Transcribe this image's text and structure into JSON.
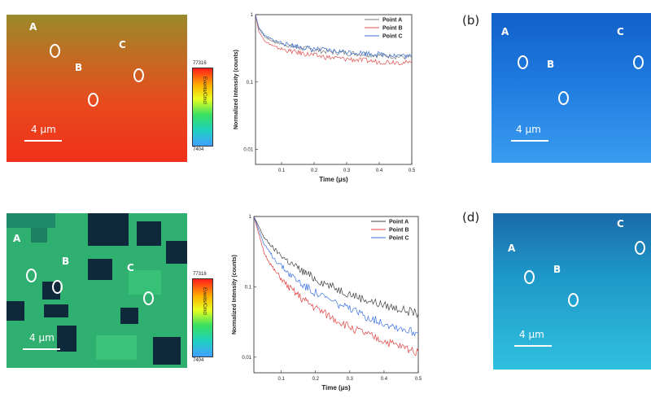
{
  "maps": {
    "a": {
      "label_a": "A",
      "label_b": "B",
      "label_c": "C",
      "scale": "4 μm",
      "colorbar": {
        "max": "77316",
        "min": "7404",
        "title": "Events/Cmcl"
      }
    },
    "b": {
      "panel": "(b)",
      "label_a": "A",
      "label_b": "B",
      "label_c": "C",
      "scale": "4 μm"
    },
    "c": {
      "label_a": "A",
      "label_b": "B",
      "label_c": "C",
      "scale": "4 μm",
      "colorbar": {
        "max": "77316",
        "min": "7404",
        "title": "Events/Cmcl"
      }
    },
    "d": {
      "panel": "(d)",
      "label_a": "A",
      "label_b": "B",
      "label_c": "C",
      "scale": "4 μm"
    }
  },
  "chart_data": [
    {
      "type": "line",
      "xlabel": "Time (μs)",
      "ylabel": "Normalized Intensity (counts)",
      "xlim": [
        0.02,
        0.5
      ],
      "ylim": [
        0.006,
        1.0
      ],
      "yscale": "log",
      "xticks": [
        "0.1",
        "0.2",
        "0.3",
        "0.4",
        "0.5"
      ],
      "yticks": [
        "1",
        "0.1",
        "0.01"
      ],
      "legend": "top-right",
      "series": [
        {
          "name": "Point A",
          "color": "#7a7a7a",
          "x": [
            0.02,
            0.03,
            0.05,
            0.08,
            0.12,
            0.16,
            0.2,
            0.25,
            0.3,
            0.35,
            0.4,
            0.45,
            0.5
          ],
          "y": [
            1.0,
            0.62,
            0.46,
            0.39,
            0.35,
            0.32,
            0.3,
            0.28,
            0.27,
            0.26,
            0.25,
            0.24,
            0.23
          ]
        },
        {
          "name": "Point B",
          "color": "#e05050",
          "x": [
            0.02,
            0.03,
            0.05,
            0.08,
            0.12,
            0.16,
            0.2,
            0.25,
            0.3,
            0.35,
            0.4,
            0.45,
            0.5
          ],
          "y": [
            1.0,
            0.56,
            0.4,
            0.33,
            0.29,
            0.27,
            0.25,
            0.23,
            0.22,
            0.21,
            0.2,
            0.2,
            0.19
          ]
        },
        {
          "name": "Point C",
          "color": "#3a6fd0",
          "x": [
            0.02,
            0.03,
            0.05,
            0.08,
            0.12,
            0.16,
            0.2,
            0.25,
            0.3,
            0.35,
            0.4,
            0.45,
            0.5
          ],
          "y": [
            1.0,
            0.65,
            0.48,
            0.41,
            0.36,
            0.33,
            0.31,
            0.29,
            0.28,
            0.27,
            0.26,
            0.25,
            0.24
          ]
        }
      ]
    },
    {
      "type": "line",
      "xlabel": "Time (μs)",
      "ylabel": "Normalized Intensity (counts)",
      "xlim": [
        0.02,
        0.5
      ],
      "ylim": [
        0.006,
        1.0
      ],
      "yscale": "log",
      "xticks": [
        "0.1",
        "0.2",
        "0.3",
        "0.4",
        "0.5"
      ],
      "yticks": [
        "1",
        "0.1",
        "0.01"
      ],
      "legend": "top-right",
      "series": [
        {
          "name": "Point A",
          "color": "#404040",
          "x": [
            0.02,
            0.05,
            0.08,
            0.12,
            0.16,
            0.2,
            0.25,
            0.3,
            0.35,
            0.4,
            0.45,
            0.5
          ],
          "y": [
            1.0,
            0.5,
            0.34,
            0.23,
            0.17,
            0.13,
            0.1,
            0.08,
            0.065,
            0.055,
            0.048,
            0.042
          ]
        },
        {
          "name": "Point B",
          "color": "#e04040",
          "x": [
            0.02,
            0.05,
            0.08,
            0.12,
            0.16,
            0.2,
            0.25,
            0.3,
            0.35,
            0.4,
            0.45,
            0.5
          ],
          "y": [
            1.0,
            0.3,
            0.17,
            0.1,
            0.068,
            0.05,
            0.036,
            0.027,
            0.021,
            0.017,
            0.014,
            0.012
          ]
        },
        {
          "name": "Point C",
          "color": "#3a70e0",
          "x": [
            0.02,
            0.05,
            0.08,
            0.12,
            0.16,
            0.2,
            0.25,
            0.3,
            0.35,
            0.4,
            0.45,
            0.5
          ],
          "y": [
            1.0,
            0.4,
            0.25,
            0.16,
            0.11,
            0.083,
            0.062,
            0.048,
            0.038,
            0.031,
            0.026,
            0.022
          ]
        }
      ]
    }
  ]
}
